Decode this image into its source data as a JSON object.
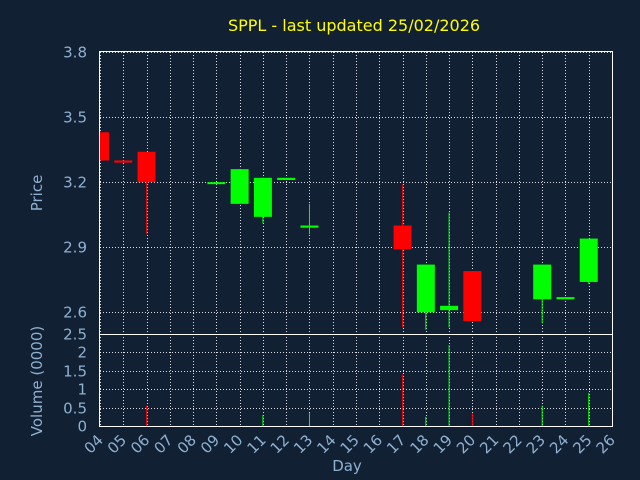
{
  "chart_data": [
    {
      "type": "candlestick",
      "title": "SPPL - last updated 25/02/2026",
      "ylabel": "Price",
      "ylim": [
        2.5,
        3.8
      ],
      "yticks": [
        "2.6",
        "2.9",
        "3.2",
        "3.5",
        "3.8"
      ],
      "x_ticks": [
        "04",
        "05",
        "06",
        "07",
        "08",
        "09",
        "10",
        "11",
        "12",
        "13",
        "14",
        "15",
        "16",
        "17",
        "18",
        "19",
        "20",
        "21",
        "22",
        "23",
        "24",
        "25",
        "26"
      ],
      "up_color": "#00ff00",
      "down_color": "#ff0000",
      "candles": [
        {
          "day": 4,
          "open": 3.43,
          "high": 3.43,
          "low": 3.3,
          "close": 3.3
        },
        {
          "day": 5,
          "open": 3.3,
          "high": 3.3,
          "low": 3.29,
          "close": 3.29
        },
        {
          "day": 6,
          "open": 3.34,
          "high": 3.34,
          "low": 2.96,
          "close": 3.2
        },
        {
          "day": 9,
          "open": 3.2,
          "high": 3.2,
          "low": 3.19,
          "close": 3.2
        },
        {
          "day": 10,
          "open": 3.1,
          "high": 3.26,
          "low": 3.1,
          "close": 3.26
        },
        {
          "day": 11,
          "open": 3.04,
          "high": 3.22,
          "low": 3.01,
          "close": 3.22
        },
        {
          "day": 12,
          "open": 3.21,
          "high": 3.22,
          "low": 3.21,
          "close": 3.22
        },
        {
          "day": 13,
          "open": 2.99,
          "high": 3.1,
          "low": 2.96,
          "close": 3.0
        },
        {
          "day": 17,
          "open": 3.0,
          "high": 3.19,
          "low": 2.53,
          "close": 2.89
        },
        {
          "day": 18,
          "open": 2.6,
          "high": 2.82,
          "low": 2.52,
          "close": 2.82
        },
        {
          "day": 19,
          "open": 2.61,
          "high": 3.06,
          "low": 2.53,
          "close": 2.63
        },
        {
          "day": 20,
          "open": 2.79,
          "high": 2.79,
          "low": 2.56,
          "close": 2.56
        },
        {
          "day": 23,
          "open": 2.66,
          "high": 2.82,
          "low": 2.55,
          "close": 2.82
        },
        {
          "day": 24,
          "open": 2.66,
          "high": 2.67,
          "low": 2.66,
          "close": 2.67
        },
        {
          "day": 25,
          "open": 2.74,
          "high": 2.94,
          "low": 2.73,
          "close": 2.94
        }
      ]
    },
    {
      "type": "bar",
      "ylabel": "Volume (0000)",
      "xlabel": "Day",
      "ylim": [
        0,
        2.5
      ],
      "yticks": [
        "0",
        "0.5",
        "1",
        "1.5",
        "2",
        "2.5"
      ],
      "bars": [
        {
          "day": 6,
          "value": 0.55,
          "color": "#ff0000"
        },
        {
          "day": 11,
          "value": 0.3,
          "color": "#00ff00"
        },
        {
          "day": 13,
          "value": 0.35,
          "color": "#00ff00"
        },
        {
          "day": 17,
          "value": 1.4,
          "color": "#ff0000"
        },
        {
          "day": 18,
          "value": 0.25,
          "color": "#00ff00"
        },
        {
          "day": 19,
          "value": 2.2,
          "color": "#00ff00"
        },
        {
          "day": 20,
          "value": 0.35,
          "color": "#ff0000"
        },
        {
          "day": 23,
          "value": 0.55,
          "color": "#00ff00"
        },
        {
          "day": 25,
          "value": 0.9,
          "color": "#00ff00"
        }
      ]
    }
  ]
}
